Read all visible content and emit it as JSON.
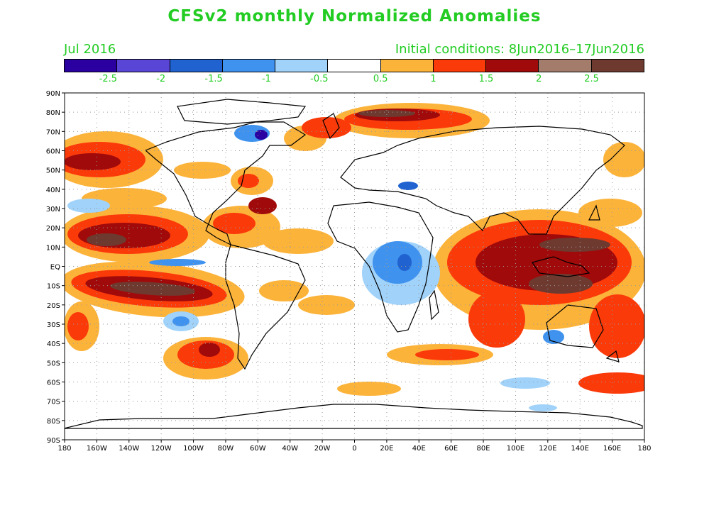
{
  "title": "CFSv2 monthly Normalized Anomalies",
  "subtitle_left": "Jul 2016",
  "subtitle_right": "Initial conditions: 8Jun2016–17Jun2016",
  "colorbar": {
    "colors": [
      "#2a00a0",
      "#5a46d6",
      "#1f62d0",
      "#3f92ee",
      "#a0d2fa",
      "#ffffff",
      "#fcb33a",
      "#fb3a0a",
      "#a00a0a",
      "#a37c6c",
      "#6e3a30"
    ],
    "labels": [
      "-2.5",
      "-2",
      "-1.5",
      "-1",
      "-0.5",
      "0.5",
      "1",
      "1.5",
      "2",
      "2.5"
    ]
  },
  "lat_labels": [
    "90N",
    "80N",
    "70N",
    "60N",
    "50N",
    "40N",
    "30N",
    "20N",
    "10N",
    "EQ",
    "10S",
    "20S",
    "30S",
    "40S",
    "50S",
    "60S",
    "70S",
    "80S",
    "90S"
  ],
  "lon_labels": [
    "180",
    "160W",
    "140W",
    "120W",
    "100W",
    "80W",
    "60W",
    "40W",
    "20W",
    "0",
    "20E",
    "40E",
    "60E",
    "80E",
    "100E",
    "120E",
    "140E",
    "160E",
    "180"
  ],
  "label_color": "#22cc22"
}
